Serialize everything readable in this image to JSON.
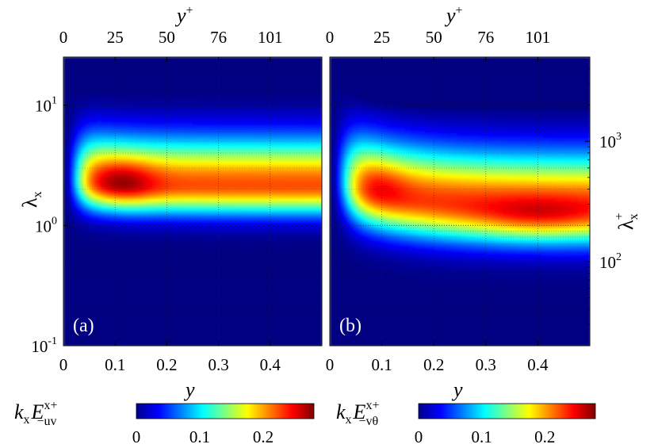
{
  "chart_data": [
    {
      "type": "heatmap",
      "panel_label": "(a)",
      "xlabel": "y",
      "ylabel": "λ",
      "ylabel_sub": "x",
      "top_axis_label": "y",
      "top_axis_sup": "+",
      "xlim": [
        0,
        0.5
      ],
      "ylim_log10": [
        -1,
        1.4
      ],
      "x_ticks": [
        0,
        0.1,
        0.2,
        0.3,
        0.4
      ],
      "x_tick_labels": [
        "0",
        "0.1",
        "0.2",
        "0.3",
        "0.4"
      ],
      "top_ticks_y": [
        0,
        0.1,
        0.2,
        0.3,
        0.4
      ],
      "top_tick_labels": [
        "0",
        "25",
        "50",
        "76",
        "101"
      ],
      "y_ticks_log10": [
        -1,
        0,
        1
      ],
      "y_tick_bases": [
        "10",
        "10",
        "10"
      ],
      "y_tick_exps": [
        "-1",
        "0",
        "1"
      ],
      "peak": {
        "y": 0.11,
        "log10_lambda_x": 0.35,
        "value": 0.27
      },
      "colorbar": {
        "label": "k",
        "label_sub": "x",
        "label_E": "E",
        "label_sup": "x+",
        "label_subE": "−uv",
        "range": [
          0,
          0.28
        ],
        "ticks": [
          0,
          0.1,
          0.2
        ],
        "tick_labels": [
          "0",
          "0.1",
          "0.2"
        ]
      }
    },
    {
      "type": "heatmap",
      "panel_label": "(b)",
      "xlabel": "y",
      "top_axis_label": "y",
      "top_axis_sup": "+",
      "right_axis_label": "λ",
      "right_axis_sub": "x",
      "right_axis_sup": "+",
      "xlim": [
        0,
        0.5
      ],
      "ylim_log10": [
        -1,
        1.4
      ],
      "x_ticks": [
        0,
        0.1,
        0.2,
        0.3,
        0.4
      ],
      "x_tick_labels": [
        "0",
        "0.1",
        "0.2",
        "0.3",
        "0.4"
      ],
      "top_ticks_y": [
        0,
        0.1,
        0.2,
        0.3,
        0.4
      ],
      "top_tick_labels": [
        "0",
        "25",
        "50",
        "76",
        "101"
      ],
      "right_ticks_log10_plus": [
        2,
        3
      ],
      "right_tick_bases": [
        "10",
        "10"
      ],
      "right_tick_exps": [
        "2",
        "3"
      ],
      "peak": {
        "y": 0.4,
        "log10_lambda_x": 0.05,
        "value": 0.27
      },
      "colorbar": {
        "label": "k",
        "label_sub": "x",
        "label_E": "E",
        "label_sup": "x+",
        "label_subE": "−vθ",
        "range": [
          0,
          0.28
        ],
        "ticks": [
          0,
          0.1,
          0.2
        ],
        "tick_labels": [
          "0",
          "0.1",
          "0.2"
        ]
      }
    }
  ]
}
